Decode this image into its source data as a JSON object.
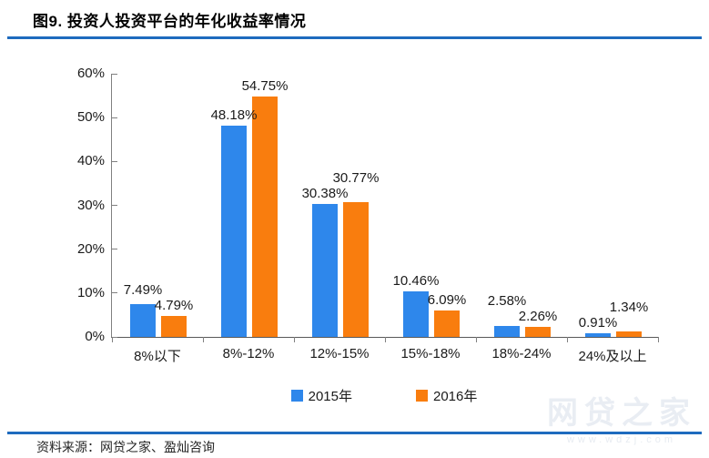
{
  "title": "图9. 投资人投资平台的年化收益率情况",
  "source_note": "资料来源：网贷之家、盈灿咨询",
  "watermark": {
    "brand": "网贷之家",
    "url": "www.wdzj.com"
  },
  "colors": {
    "series_2015": "#2E87EB",
    "series_2016": "#F97D0E",
    "divider_blue": "#1E6BBE",
    "axis_line": "#808080",
    "text": "#1a1a1a"
  },
  "chart_data": {
    "type": "bar",
    "title": "图9. 投资人投资平台的年化收益率情况",
    "categories": [
      "8%以下",
      "8%-12%",
      "12%-15%",
      "15%-18%",
      "18%-24%",
      "24%及以上"
    ],
    "series": [
      {
        "name": "2015年",
        "color": "#2E87EB",
        "values": [
          7.49,
          48.18,
          30.38,
          10.46,
          2.58,
          0.91
        ]
      },
      {
        "name": "2016年",
        "color": "#F97D0E",
        "values": [
          4.79,
          54.75,
          30.77,
          6.09,
          2.26,
          1.34
        ]
      }
    ],
    "value_label_format": "0.00%",
    "xlabel": "",
    "ylabel": "",
    "ylim": [
      0,
      60
    ],
    "y_ticks": [
      "0%",
      "10%",
      "20%",
      "30%",
      "40%",
      "50%",
      "60%"
    ],
    "grid": false,
    "legend_position": "bottom"
  }
}
